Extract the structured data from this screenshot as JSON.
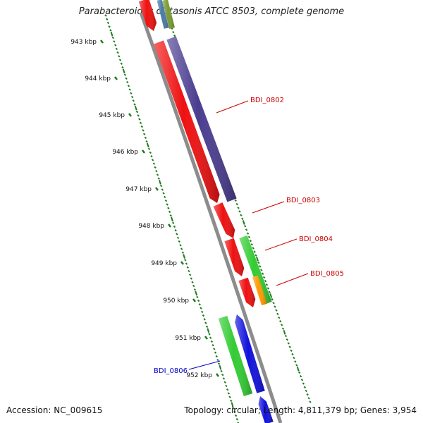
{
  "title": "Parabacteroides distasonis ATCC 8503, complete genome",
  "footer": {
    "accession": "Accession: NC_009615",
    "summary": "Topology: circular; Length: 4,811,379 bp; Genes: 3,954"
  },
  "ruler": {
    "unit": "kbp",
    "labels": [
      "943 kbp",
      "944 kbp",
      "945 kbp",
      "946 kbp",
      "947 kbp",
      "948 kbp",
      "949 kbp",
      "950 kbp",
      "951 kbp",
      "952 kbp"
    ]
  },
  "colors": {
    "backbone": "#8c8c8c",
    "ruler_ticks": "#1e7a1e",
    "forward_label": "#cc0000",
    "reverse_label": "#0000cc",
    "red_cds": "#ee1111",
    "purple_cds": "#4a3d8f",
    "green_cds": "#33cc33",
    "orange_cds": "#ff9900",
    "blue_cds": "#1111dd",
    "olive_cds": "#7a9a33",
    "steel_cds": "#4a7aaa"
  },
  "genes": [
    {
      "id": "partial-red-top",
      "label": "",
      "color": "red_cds",
      "strand": "forward"
    },
    {
      "id": "partial-steel-top",
      "label": "",
      "color": "steel_cds",
      "strand": "forward"
    },
    {
      "id": "partial-olive-top",
      "label": "",
      "color": "olive_cds",
      "strand": "forward"
    },
    {
      "id": "red-long",
      "label": "",
      "color": "red_cds",
      "strand": "forward"
    },
    {
      "id": "bdi-0802",
      "label": "BDI_0802",
      "color": "purple_cds",
      "strand": "forward"
    },
    {
      "id": "bdi-0803",
      "label": "BDI_0803",
      "color": "red_cds",
      "strand": "forward"
    },
    {
      "id": "red-mid",
      "label": "",
      "color": "red_cds",
      "strand": "forward"
    },
    {
      "id": "bdi-0804",
      "label": "BDI_0804",
      "color": "green_cds",
      "strand": "forward"
    },
    {
      "id": "red-low",
      "label": "",
      "color": "red_cds",
      "strand": "forward"
    },
    {
      "id": "bdi-0805",
      "label": "BDI_0805",
      "color": "orange_cds",
      "strand": "forward"
    },
    {
      "id": "bdi-0806",
      "label": "BDI_0806",
      "color": "green_cds",
      "strand": "reverse"
    },
    {
      "id": "blue-reverse",
      "label": "",
      "color": "blue_cds",
      "strand": "reverse"
    },
    {
      "id": "partial-blue-bottom",
      "label": "",
      "color": "blue_cds",
      "strand": "reverse"
    }
  ]
}
